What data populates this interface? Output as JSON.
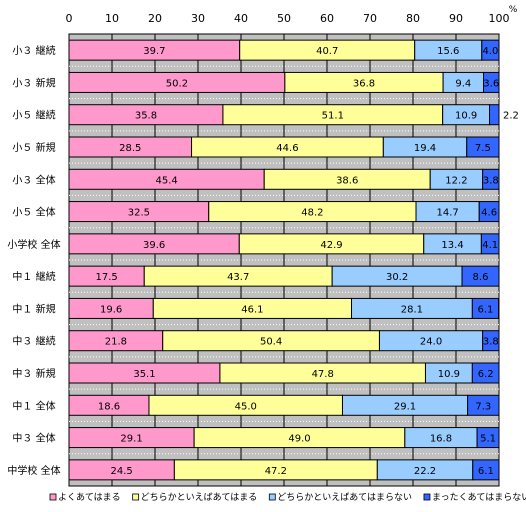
{
  "chart_data": {
    "type": "bar",
    "orientation": "horizontal",
    "stacked": true,
    "unit_label": "%",
    "xlim": [
      0,
      100
    ],
    "xticks": [
      0,
      10,
      20,
      30,
      40,
      50,
      60,
      70,
      80,
      90,
      100
    ],
    "grid": true,
    "legend_position": "bottom",
    "categories": [
      "小３ 継続",
      "小３ 新規",
      "小５ 継続",
      "小５ 新規",
      "小３ 全体",
      "小５ 全体",
      "小学校 全体",
      "中１ 継続",
      "中１ 新規",
      "中３ 継続",
      "中３ 新規",
      "中１ 全体",
      "中３ 全体",
      "中学校 全体"
    ],
    "series": [
      {
        "name": "よくあてはまる",
        "color": "#ff99cc",
        "values": [
          39.7,
          50.2,
          35.8,
          28.5,
          45.4,
          32.5,
          39.6,
          17.5,
          19.6,
          21.8,
          35.1,
          18.6,
          29.1,
          24.5
        ]
      },
      {
        "name": "どちらかといえばあてはまる",
        "color": "#ffff99",
        "values": [
          40.7,
          36.8,
          51.1,
          44.6,
          38.6,
          48.2,
          42.9,
          43.7,
          46.1,
          50.4,
          47.8,
          45.0,
          49.0,
          47.2
        ]
      },
      {
        "name": "どちらかといえばあてはまらない",
        "color": "#99ccff",
        "values": [
          15.6,
          9.4,
          10.9,
          19.4,
          12.2,
          14.7,
          13.4,
          30.2,
          28.1,
          24.0,
          10.9,
          29.1,
          16.8,
          22.2
        ]
      },
      {
        "name": "まったくあてはまらない",
        "color": "#3366ff",
        "values": [
          4.0,
          3.6,
          2.2,
          7.5,
          3.8,
          4.6,
          4.1,
          8.6,
          6.1,
          3.8,
          6.2,
          7.3,
          5.1,
          6.1
        ]
      }
    ],
    "value_labels": [
      [
        "39.7",
        "40.7",
        "15.6",
        "4.0"
      ],
      [
        "50.2",
        "36.8",
        "9.4",
        "3.6"
      ],
      [
        "35.8",
        "51.1",
        "10.9",
        "2.2"
      ],
      [
        "28.5",
        "44.6",
        "19.4",
        "7.5"
      ],
      [
        "45.4",
        "38.6",
        "12.2",
        "3.8"
      ],
      [
        "32.5",
        "48.2",
        "14.7",
        "4.6"
      ],
      [
        "39.6",
        "42.9",
        "13.4",
        "4.1"
      ],
      [
        "17.5",
        "43.7",
        "30.2",
        "8.6"
      ],
      [
        "19.6",
        "46.1",
        "28.1",
        "6.1"
      ],
      [
        "21.8",
        "50.4",
        "24.0",
        "3.8"
      ],
      [
        "35.1",
        "47.8",
        "10.9",
        "6.2"
      ],
      [
        "18.6",
        "45.0",
        "29.1",
        "7.3"
      ],
      [
        "29.1",
        "49.0",
        "16.8",
        "5.1"
      ],
      [
        "24.5",
        "47.2",
        "22.2",
        "6.1"
      ]
    ]
  }
}
